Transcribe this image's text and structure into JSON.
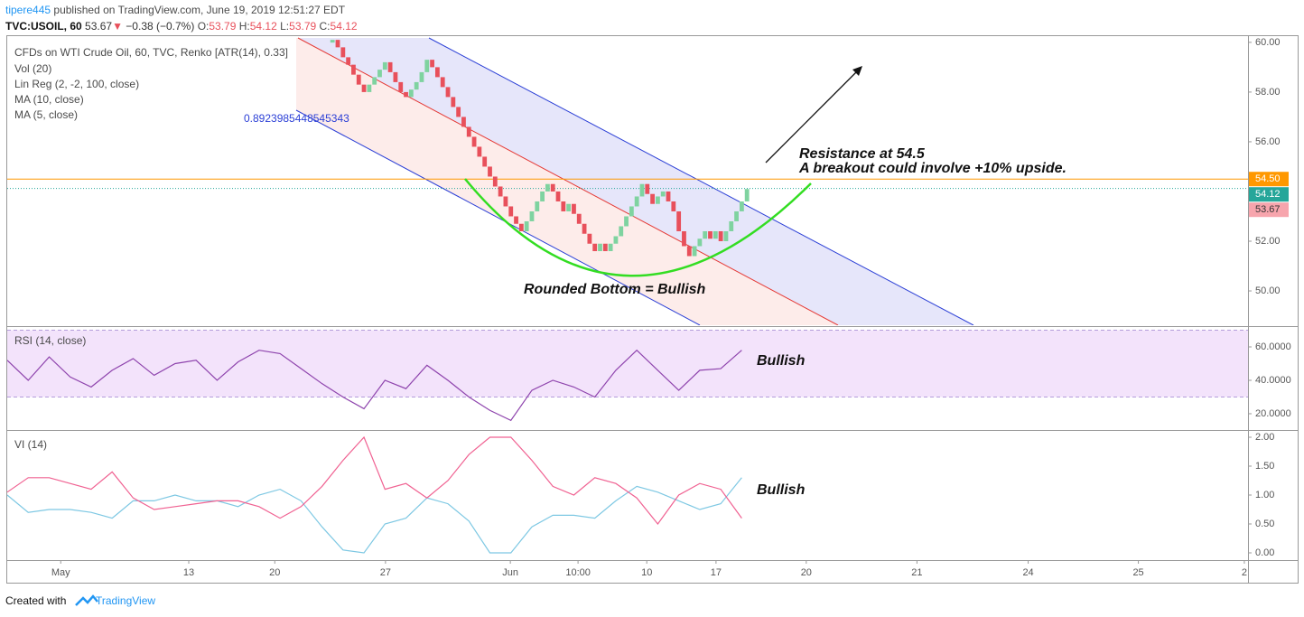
{
  "header": {
    "publisher": "tipere445",
    "published": "published on TradingView.com, June 19, 2019 12:51:27 EDT",
    "symbol": "TVC:USOIL, 60",
    "last": "53.67",
    "arrow": "▼",
    "change": "−0.38 (−0.7%)",
    "ohlc": [
      {
        "label": "O:",
        "value": "53.79"
      },
      {
        "label": "H:",
        "value": "54.12"
      },
      {
        "label": "L:",
        "value": "53.79"
      },
      {
        "label": "C:",
        "value": "54.12"
      }
    ]
  },
  "footer": {
    "text": "Created with",
    "brand": "TradingView"
  },
  "chart_data": [
    {
      "type": "renko",
      "title": "CFDs on WTI Crude Oil, 60, TVC, Renko [ATR(14), 0.33]",
      "indicators": [
        "Vol (20)",
        "Lin Reg (2, -2, 100, close)",
        "MA (10, close)",
        "MA (5, close)"
      ],
      "channel_label": "0.8923985448545343",
      "annotations": [
        "Resistance at 54.5",
        "A breakout could involve +10% upside.",
        "Rounded Bottom = Bullish"
      ],
      "up_color": "#7fd3a0",
      "down_color": "#e8505b",
      "x": [
        62,
        63,
        64,
        65,
        66,
        67,
        68,
        69,
        70,
        71,
        72,
        73,
        74,
        75,
        76,
        77,
        78,
        79,
        80,
        81,
        82,
        83,
        84,
        85,
        86,
        87,
        88,
        89,
        90,
        91,
        92,
        93,
        94,
        95,
        96,
        97,
        98,
        99,
        100,
        101,
        102,
        103,
        104,
        105,
        106,
        107,
        108,
        109,
        110,
        111,
        112,
        113,
        114,
        115,
        116,
        117,
        118,
        119,
        120,
        121,
        122,
        123,
        124,
        125,
        126,
        127,
        128,
        129,
        130,
        131,
        132,
        133,
        134,
        135,
        136,
        137,
        138,
        139,
        140,
        141
      ],
      "values": [
        60.1,
        59.8,
        59.4,
        59.1,
        58.7,
        58.3,
        58.0,
        58.3,
        58.6,
        58.9,
        59.2,
        58.8,
        58.4,
        58.0,
        57.8,
        58.1,
        58.4,
        58.8,
        59.3,
        59.0,
        58.6,
        58.2,
        57.8,
        57.4,
        57.0,
        56.6,
        56.2,
        55.8,
        55.4,
        55.0,
        54.6,
        54.2,
        53.8,
        53.4,
        53.0,
        52.7,
        52.4,
        52.8,
        53.2,
        53.6,
        54.0,
        54.3,
        54.0,
        53.6,
        53.2,
        53.5,
        53.1,
        52.7,
        52.3,
        51.9,
        51.6,
        51.9,
        51.6,
        51.9,
        52.2,
        52.6,
        53.0,
        53.4,
        53.8,
        54.3,
        53.9,
        53.5,
        53.8,
        54.0,
        53.6,
        53.2,
        52.4,
        51.8,
        51.4,
        51.8,
        52.1,
        52.4,
        52.1,
        52.4,
        52.0,
        52.4,
        52.8,
        53.2,
        53.6,
        54.1
      ],
      "xlim": [
        0,
        236.5
      ],
      "xticks": [
        {
          "value": 10.2,
          "label": "May"
        },
        {
          "value": 34.6,
          "label": "13"
        },
        {
          "value": 51,
          "label": "20"
        },
        {
          "value": 72.1,
          "label": "27"
        },
        {
          "value": 95.9,
          "label": "Jun"
        },
        {
          "value": 108.8,
          "label": "10:00"
        },
        {
          "value": 121.9,
          "label": "10"
        },
        {
          "value": 135.1,
          "label": "17"
        },
        {
          "value": 152.3,
          "label": "20"
        },
        {
          "value": 173.4,
          "label": "21"
        },
        {
          "value": 194.6,
          "label": "24"
        },
        {
          "value": 215.6,
          "label": "25"
        },
        {
          "value": 235.8,
          "label": "2"
        }
      ],
      "ylim": [
        48.62,
        60.25
      ],
      "yticks": [
        {
          "value": 50,
          "label": "50.00"
        },
        {
          "value": 52,
          "label": "52.00"
        },
        {
          "value": 54,
          "label": "54.00"
        },
        {
          "value": 56,
          "label": "56.00"
        },
        {
          "value": 58,
          "label": "58.00"
        },
        {
          "value": 60,
          "label": "60.00"
        }
      ],
      "price_lines": [
        {
          "value": 54.5,
          "label": "54.50",
          "color": "#ff9800",
          "style": "solid"
        },
        {
          "value": 54.12,
          "label": "54.12",
          "color": "#26a69a",
          "style": "dotted"
        },
        {
          "value": 53.67,
          "label": "53.67",
          "color": "#f7a5ad",
          "style": "none"
        }
      ]
    },
    {
      "type": "line",
      "title": "RSI (14, close)",
      "annotation": "Bullish",
      "color": "#8e44ad",
      "band": [
        30,
        70
      ],
      "band_color": "#f3e3fb",
      "x": [
        0,
        4,
        8,
        12,
        16,
        20,
        24,
        28,
        32,
        36,
        40,
        44,
        48,
        52,
        56,
        60,
        64,
        68,
        72,
        76,
        80,
        84,
        88,
        92,
        96,
        100,
        104,
        108,
        112,
        116,
        120,
        124,
        128,
        132,
        136,
        140
      ],
      "values": [
        52,
        40,
        54,
        42,
        36,
        46,
        53,
        43,
        50,
        52,
        40,
        51,
        58,
        56,
        47,
        38,
        30,
        23,
        40,
        35,
        49,
        40,
        30,
        22,
        16,
        34,
        40,
        36,
        30,
        46,
        58,
        46,
        34,
        46,
        47,
        58
      ],
      "xlim": [
        0,
        236.5
      ],
      "ylim": [
        10.8,
        71.35
      ],
      "yticks": [
        {
          "value": 20,
          "label": "20.0000"
        },
        {
          "value": 40,
          "label": "40.0000"
        },
        {
          "value": 60,
          "label": "60.0000"
        }
      ]
    },
    {
      "type": "line",
      "title": "VI (14)",
      "annotation": "Bullish",
      "x": [
        0,
        4,
        8,
        12,
        16,
        20,
        24,
        28,
        32,
        36,
        40,
        44,
        48,
        52,
        56,
        60,
        64,
        68,
        72,
        76,
        80,
        84,
        88,
        92,
        96,
        100,
        104,
        108,
        112,
        116,
        120,
        124,
        128,
        132,
        136,
        140
      ],
      "series": [
        {
          "color": "#7ec8e3",
          "values": [
            1.0,
            0.7,
            0.75,
            0.75,
            0.7,
            0.6,
            0.9,
            0.9,
            1.0,
            0.9,
            0.9,
            0.8,
            1.0,
            1.1,
            0.9,
            0.45,
            0.05,
            0.0,
            0.5,
            0.6,
            0.95,
            0.85,
            0.55,
            0.0,
            0.0,
            0.45,
            0.65,
            0.65,
            0.6,
            0.9,
            1.15,
            1.05,
            0.9,
            0.75,
            0.85,
            1.3
          ]
        },
        {
          "color": "#f06292",
          "values": [
            1.05,
            1.3,
            1.3,
            1.2,
            1.1,
            1.4,
            0.95,
            0.75,
            0.8,
            0.85,
            0.9,
            0.9,
            0.8,
            0.6,
            0.8,
            1.15,
            1.6,
            2.0,
            1.1,
            1.2,
            0.95,
            1.25,
            1.7,
            2.0,
            2.0,
            1.6,
            1.15,
            1.0,
            1.3,
            1.2,
            0.95,
            0.5,
            1.0,
            1.2,
            1.1,
            0.6
          ]
        }
      ],
      "xlim": [
        0,
        236.5
      ],
      "ylim": [
        -0.125,
        2.094
      ],
      "yticks": [
        {
          "value": 0,
          "label": "0.00"
        },
        {
          "value": 0.5,
          "label": "0.50"
        },
        {
          "value": 1,
          "label": "1.00"
        },
        {
          "value": 1.5,
          "label": "1.50"
        },
        {
          "value": 2,
          "label": "2.00"
        }
      ]
    }
  ]
}
